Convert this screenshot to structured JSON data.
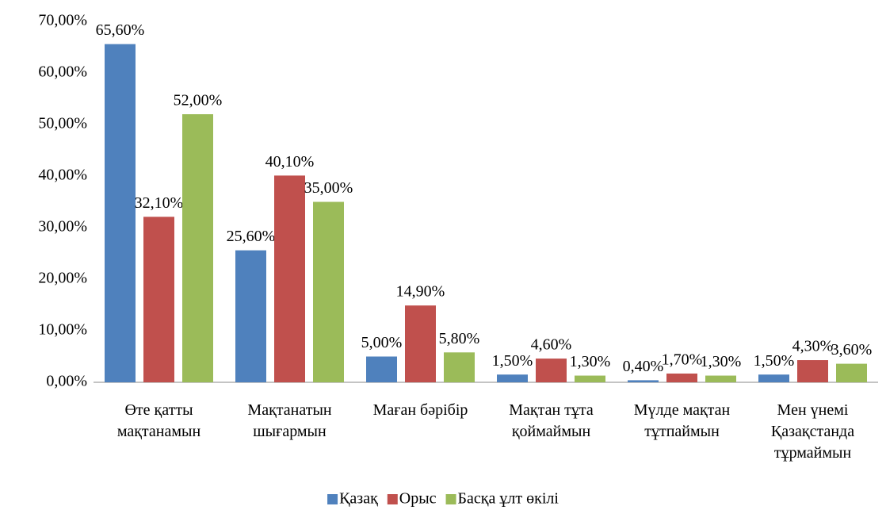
{
  "chart_data": {
    "type": "bar",
    "categories": [
      "Өте қатты\nмақтанамын",
      "Мақтанатын\nшығармын",
      "Маған бәрібір",
      "Мақтан тұта\nқоймаймын",
      "Мүлде мақтан\nтұтпаймын",
      "Мен үнемі\nҚазақстанда\nтұрмаймын"
    ],
    "series": [
      {
        "name": "Қазақ",
        "color": "#4f81bd",
        "values": [
          65.6,
          25.6,
          5.0,
          1.5,
          0.4,
          1.5
        ],
        "value_labels": [
          "65,60%",
          "25,60%",
          "5,00%",
          "1,50%",
          "0,40%",
          "1,50%"
        ]
      },
      {
        "name": "Орыс",
        "color": "#c0504d",
        "values": [
          32.1,
          40.1,
          14.9,
          4.6,
          1.7,
          4.3
        ],
        "value_labels": [
          "32,10%",
          "40,10%",
          "14,90%",
          "4,60%",
          "1,70%",
          "4,30%"
        ]
      },
      {
        "name": "Басқа ұлт өкілі",
        "color": "#9bbb59",
        "values": [
          52.0,
          35.0,
          5.8,
          1.3,
          1.3,
          3.6
        ],
        "value_labels": [
          "52,00%",
          "35,00%",
          "5,80%",
          "1,30%",
          "1,30%",
          "3,60%"
        ]
      }
    ],
    "ylim": [
      0,
      70
    ],
    "yticks": [
      {
        "value": 0,
        "label": "0,00%"
      },
      {
        "value": 10,
        "label": "10,00%"
      },
      {
        "value": 20,
        "label": "20,00%"
      },
      {
        "value": 30,
        "label": "30,00%"
      },
      {
        "value": 40,
        "label": "40,00%"
      },
      {
        "value": 50,
        "label": "50,00%"
      },
      {
        "value": 60,
        "label": "60,00%"
      },
      {
        "value": 70,
        "label": "70,00%"
      }
    ],
    "legend": "bottom"
  }
}
